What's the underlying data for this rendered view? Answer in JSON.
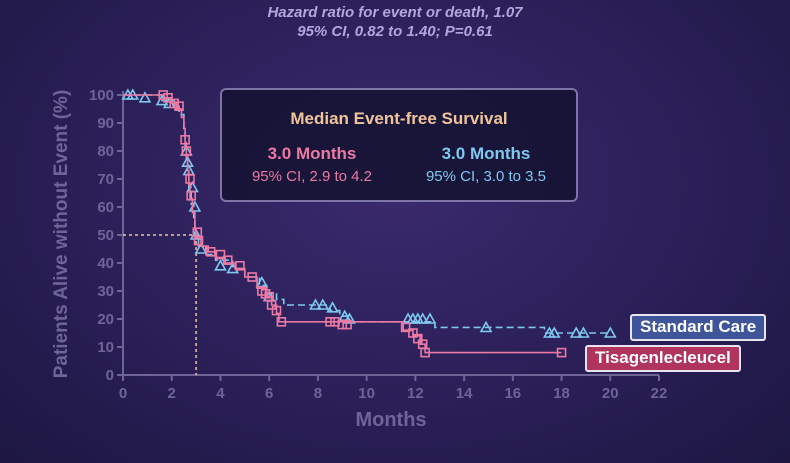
{
  "header": {
    "hazard_line1": "Hazard ratio for event or death, 1.07",
    "hazard_line2": "95% CI, 0.82 to 1.40; P=0.61"
  },
  "median_box": {
    "title": "Median Event-free Survival",
    "tisagenlecleucel": {
      "value": "3.0 Months",
      "ci": "95% CI, 2.9 to 4.2"
    },
    "standard_care": {
      "value": "3.0 Months",
      "ci": "95% CI, 3.0 to 3.5"
    }
  },
  "legend": {
    "standard_care": "Standard Care",
    "tisagenlecleucel": "Tisagenlecleucel"
  },
  "colors": {
    "tisagenlecleucel": "#ec79a3",
    "standard_care": "#7ec8ef",
    "axis": "#6f6498",
    "median_guide": "#f0c49a"
  },
  "chart_data": {
    "type": "line",
    "step": true,
    "xlabel": "Months",
    "ylabel": "Patients Alive without Event (%)",
    "xlim": [
      0,
      22
    ],
    "ylim": [
      0,
      100
    ],
    "xticks": [
      0,
      2,
      4,
      6,
      8,
      10,
      12,
      14,
      16,
      18,
      20,
      22
    ],
    "yticks": [
      0,
      10,
      20,
      30,
      40,
      50,
      60,
      70,
      80,
      90,
      100
    ],
    "median_guide": {
      "x": 3.0,
      "y": 50
    },
    "series": [
      {
        "name": "Tisagenlecleucel",
        "line_style": "solid",
        "marker": "square",
        "curve": [
          [
            0,
            100
          ],
          [
            1.7,
            100
          ],
          [
            1.7,
            99
          ],
          [
            2.0,
            99
          ],
          [
            2.0,
            97
          ],
          [
            2.2,
            97
          ],
          [
            2.2,
            95
          ],
          [
            2.4,
            95
          ],
          [
            2.4,
            92
          ],
          [
            2.5,
            92
          ],
          [
            2.5,
            88
          ],
          [
            2.55,
            88
          ],
          [
            2.55,
            83
          ],
          [
            2.6,
            83
          ],
          [
            2.6,
            78
          ],
          [
            2.65,
            78
          ],
          [
            2.65,
            73
          ],
          [
            2.7,
            73
          ],
          [
            2.7,
            68
          ],
          [
            2.75,
            68
          ],
          [
            2.75,
            63
          ],
          [
            2.85,
            63
          ],
          [
            2.85,
            58
          ],
          [
            2.95,
            58
          ],
          [
            2.95,
            52
          ],
          [
            3.0,
            52
          ],
          [
            3.0,
            49
          ],
          [
            3.2,
            49
          ],
          [
            3.2,
            46
          ],
          [
            3.5,
            46
          ],
          [
            3.5,
            44
          ],
          [
            3.8,
            44
          ],
          [
            3.8,
            42
          ],
          [
            4.2,
            42
          ],
          [
            4.2,
            40
          ],
          [
            4.6,
            40
          ],
          [
            4.6,
            38
          ],
          [
            5.0,
            38
          ],
          [
            5.0,
            35
          ],
          [
            5.5,
            35
          ],
          [
            5.5,
            31
          ],
          [
            5.9,
            31
          ],
          [
            5.9,
            28
          ],
          [
            6.1,
            28
          ],
          [
            6.1,
            25
          ],
          [
            6.3,
            25
          ],
          [
            6.3,
            22
          ],
          [
            6.4,
            22
          ],
          [
            6.4,
            19
          ],
          [
            11.5,
            19
          ],
          [
            11.5,
            16
          ],
          [
            11.9,
            16
          ],
          [
            11.9,
            14
          ],
          [
            12.2,
            14
          ],
          [
            12.2,
            11
          ],
          [
            12.4,
            11
          ],
          [
            12.4,
            8
          ],
          [
            18.0,
            8
          ]
        ],
        "censored": [
          [
            1.65,
            100
          ],
          [
            1.85,
            99
          ],
          [
            2.1,
            97
          ],
          [
            2.3,
            96
          ],
          [
            2.55,
            84
          ],
          [
            2.6,
            80
          ],
          [
            2.75,
            70
          ],
          [
            2.8,
            64
          ],
          [
            3.05,
            51
          ],
          [
            3.1,
            48
          ],
          [
            3.6,
            44
          ],
          [
            4.0,
            43
          ],
          [
            4.3,
            41
          ],
          [
            4.8,
            39
          ],
          [
            5.3,
            35
          ],
          [
            5.7,
            30
          ],
          [
            5.85,
            29
          ],
          [
            6.0,
            28
          ],
          [
            6.1,
            25
          ],
          [
            6.3,
            23
          ],
          [
            6.5,
            19
          ],
          [
            8.5,
            19
          ],
          [
            8.7,
            19
          ],
          [
            9.0,
            18
          ],
          [
            9.2,
            18
          ],
          [
            11.6,
            17
          ],
          [
            11.9,
            15
          ],
          [
            12.1,
            13
          ],
          [
            12.3,
            11
          ],
          [
            12.4,
            8
          ],
          [
            18.0,
            8
          ]
        ]
      },
      {
        "name": "Standard Care",
        "line_style": "dashed",
        "marker": "triangle",
        "curve": [
          [
            0,
            100
          ],
          [
            1.6,
            100
          ],
          [
            1.6,
            98
          ],
          [
            2.1,
            98
          ],
          [
            2.1,
            96
          ],
          [
            2.3,
            96
          ],
          [
            2.3,
            93
          ],
          [
            2.5,
            93
          ],
          [
            2.5,
            87
          ],
          [
            2.55,
            87
          ],
          [
            2.55,
            82
          ],
          [
            2.6,
            82
          ],
          [
            2.6,
            77
          ],
          [
            2.65,
            77
          ],
          [
            2.65,
            72
          ],
          [
            2.7,
            72
          ],
          [
            2.7,
            67
          ],
          [
            2.8,
            67
          ],
          [
            2.8,
            61
          ],
          [
            2.9,
            61
          ],
          [
            2.9,
            55
          ],
          [
            2.95,
            55
          ],
          [
            2.95,
            50
          ],
          [
            3.1,
            50
          ],
          [
            3.1,
            46
          ],
          [
            3.4,
            46
          ],
          [
            3.4,
            43
          ],
          [
            3.8,
            43
          ],
          [
            3.8,
            41
          ],
          [
            4.5,
            41
          ],
          [
            4.5,
            38
          ],
          [
            5.0,
            38
          ],
          [
            5.0,
            35
          ],
          [
            5.6,
            35
          ],
          [
            5.6,
            32
          ],
          [
            5.9,
            32
          ],
          [
            5.9,
            29
          ],
          [
            6.3,
            29
          ],
          [
            6.3,
            27
          ],
          [
            6.6,
            27
          ],
          [
            6.6,
            25
          ],
          [
            8.5,
            25
          ],
          [
            8.5,
            23
          ],
          [
            8.9,
            23
          ],
          [
            8.9,
            21
          ],
          [
            9.3,
            21
          ],
          [
            9.3,
            19
          ],
          [
            12.8,
            19
          ],
          [
            12.8,
            17
          ],
          [
            17.3,
            17
          ],
          [
            17.3,
            15
          ],
          [
            20.0,
            15
          ]
        ],
        "censored": [
          [
            0.2,
            100
          ],
          [
            0.4,
            100
          ],
          [
            0.9,
            99
          ],
          [
            1.6,
            98
          ],
          [
            1.9,
            97
          ],
          [
            2.6,
            80
          ],
          [
            2.65,
            76
          ],
          [
            2.7,
            73
          ],
          [
            2.85,
            67
          ],
          [
            2.95,
            60
          ],
          [
            3.0,
            50
          ],
          [
            3.2,
            45
          ],
          [
            4.0,
            39
          ],
          [
            4.5,
            38
          ],
          [
            5.7,
            33
          ],
          [
            6.0,
            28
          ],
          [
            7.9,
            25
          ],
          [
            8.2,
            25
          ],
          [
            8.6,
            24
          ],
          [
            9.1,
            21
          ],
          [
            9.3,
            20
          ],
          [
            11.7,
            20
          ],
          [
            11.9,
            20
          ],
          [
            12.1,
            20
          ],
          [
            12.3,
            20
          ],
          [
            12.6,
            20
          ],
          [
            14.9,
            17
          ],
          [
            17.5,
            15
          ],
          [
            17.7,
            15
          ],
          [
            18.6,
            15
          ],
          [
            18.9,
            15
          ],
          [
            20.0,
            15
          ]
        ]
      }
    ]
  }
}
